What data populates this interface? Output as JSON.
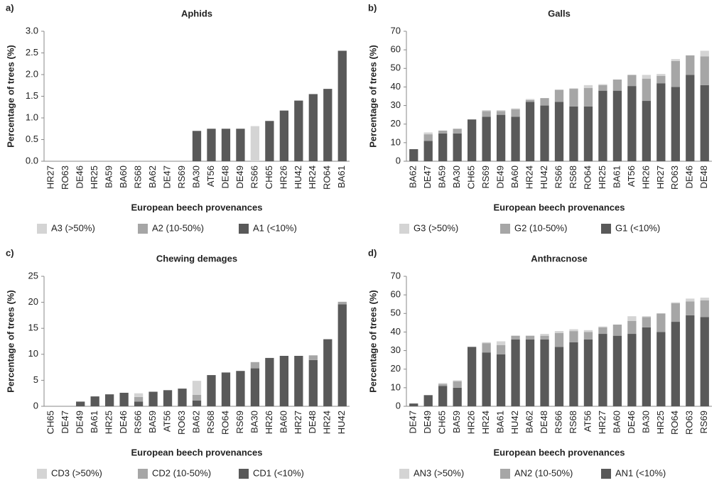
{
  "chart_data": [
    {
      "type": "bar",
      "stacked": true,
      "panel_label": "a)",
      "title": "Aphids",
      "x_label": "European beech provenances",
      "y_label": "Percentage of trees (%)",
      "categories": [
        "HR27",
        "RO63",
        "DE46",
        "HR25",
        "BA59",
        "BA60",
        "RS68",
        "BA62",
        "DE47",
        "RS69",
        "BA30",
        "AT56",
        "DE48",
        "DE49",
        "RS66",
        "CH65",
        "HR26",
        "HU42",
        "HR24",
        "RO64",
        "BA61"
      ],
      "series": [
        {
          "name": "A1 (<10%)",
          "color": "#595959",
          "values": [
            0,
            0,
            0,
            0,
            0,
            0,
            0,
            0,
            0,
            0,
            0.7,
            0.75,
            0.75,
            0.75,
            0,
            0.93,
            1.17,
            1.4,
            1.55,
            1.67,
            2.55
          ]
        },
        {
          "name": "A2 (10-50%)",
          "color": "#a6a6a6",
          "values": [
            0,
            0,
            0,
            0,
            0,
            0,
            0,
            0,
            0,
            0,
            0,
            0,
            0,
            0,
            0,
            0,
            0,
            0,
            0,
            0,
            0
          ]
        },
        {
          "name": "A3 (>50%)",
          "color": "#d4d4d4",
          "values": [
            0,
            0,
            0,
            0,
            0,
            0,
            0,
            0,
            0,
            0,
            0,
            0,
            0,
            0,
            0.81,
            0,
            0,
            0,
            0,
            0,
            0
          ]
        }
      ],
      "ylim": [
        0,
        3
      ],
      "yticks": [
        {
          "value": 0,
          "label": "0.0"
        },
        0.5,
        {
          "value": 1,
          "label": "1.0"
        },
        1.5,
        {
          "value": 2,
          "label": "2.0"
        },
        2.5,
        {
          "value": 3,
          "label": "3.0"
        }
      ],
      "grid": false
    },
    {
      "type": "bar",
      "stacked": true,
      "panel_label": "b)",
      "title": "Galls",
      "x_label": "European beech provenances",
      "y_label": "Percentage of trees (%)",
      "categories": [
        "BA62",
        "DE47",
        "BA59",
        "BA30",
        "CH65",
        "RS69",
        "DE49",
        "BA60",
        "HR24",
        "HU42",
        "RS66",
        "RS68",
        "RO64",
        "HR25",
        "BA61",
        "AT56",
        "HR26",
        "HR27",
        "RO63",
        "DE46",
        "DE48"
      ],
      "series": [
        {
          "name": "G1 (<10%)",
          "color": "#595959",
          "values": [
            6.5,
            11,
            15,
            15,
            22.5,
            24,
            25,
            24,
            32,
            30,
            32,
            29.5,
            29.5,
            38,
            38,
            40.5,
            32.5,
            42,
            40,
            46.5,
            41
          ]
        },
        {
          "name": "G2 (10-50%)",
          "color": "#a6a6a6",
          "values": [
            0,
            3.5,
            1.5,
            2.5,
            0,
            3,
            2,
            4,
            1,
            4,
            6.5,
            9.5,
            10,
            3,
            6,
            6,
            12,
            4,
            14,
            10.5,
            15.5
          ]
        },
        {
          "name": "G3 (>50%)",
          "color": "#d4d4d4",
          "values": [
            0,
            1,
            0,
            0,
            0,
            0.5,
            0.5,
            0.5,
            0.5,
            0,
            0,
            0.3,
            1.5,
            0.5,
            0,
            0,
            2,
            1,
            1,
            0,
            3
          ]
        }
      ],
      "ylim": [
        0,
        70
      ],
      "yticks": [
        0,
        10,
        20,
        30,
        40,
        50,
        60,
        70
      ],
      "grid": false
    },
    {
      "type": "bar",
      "stacked": true,
      "panel_label": "c)",
      "title": "Chewing demages",
      "x_label": "European beech provenances",
      "y_label": "Percentage of trees (%)",
      "categories": [
        "CH65",
        "DE47",
        "DE49",
        "BA61",
        "HR25",
        "DE46",
        "RS66",
        "BA59",
        "AT56",
        "RO63",
        "BA62",
        "RS68",
        "RO64",
        "RS69",
        "BA30",
        "HR26",
        "BA60",
        "HR27",
        "DE48",
        "HR24",
        "HU42"
      ],
      "series": [
        {
          "name": "CD1 (<10%)",
          "color": "#595959",
          "values": [
            0,
            0,
            0.9,
            1.9,
            2.3,
            2.6,
            0.9,
            2.8,
            3.1,
            3.4,
            1.1,
            6,
            6.5,
            6.8,
            7.3,
            9.3,
            9.7,
            9.7,
            8.9,
            12.9,
            19.6
          ]
        },
        {
          "name": "CD2 (10-50%)",
          "color": "#a6a6a6",
          "values": [
            0,
            0,
            0,
            0,
            0,
            0,
            0.9,
            0,
            0,
            0,
            1.1,
            0,
            0,
            0,
            1.2,
            0,
            0,
            0,
            0.9,
            0,
            0.5
          ]
        },
        {
          "name": "CD3 (>50%)",
          "color": "#d4d4d4",
          "values": [
            0,
            0,
            0,
            0,
            0,
            0,
            0.7,
            0,
            0,
            0,
            2.7,
            0,
            0,
            0,
            0,
            0,
            0,
            0,
            0,
            0,
            0
          ]
        }
      ],
      "ylim": [
        0,
        25
      ],
      "yticks": [
        0,
        5,
        10,
        15,
        20,
        25
      ],
      "grid": false
    },
    {
      "type": "bar",
      "stacked": true,
      "panel_label": "d)",
      "title": "Anthracnose",
      "x_label": "European beech provenances",
      "y_label": "Percentage of trees (%)",
      "categories": [
        "DE47",
        "DE49",
        "CH65",
        "BA59",
        "HR26",
        "HR24",
        "BA61",
        "HU42",
        "BA62",
        "DE48",
        "RS66",
        "RS68",
        "AT56",
        "HR27",
        "BA60",
        "DE46",
        "BA30",
        "HR25",
        "RO64",
        "RO63",
        "RS69"
      ],
      "series": [
        {
          "name": "AN1 (<10%)",
          "color": "#595959",
          "values": [
            1.5,
            6,
            11,
            10,
            32,
            29,
            28,
            36,
            36,
            36,
            32,
            34.5,
            36,
            39,
            38,
            39,
            42.5,
            40,
            45.5,
            49,
            48
          ]
        },
        {
          "name": "AN2 (10-50%)",
          "color": "#a6a6a6",
          "values": [
            0,
            0,
            1,
            3.5,
            0,
            5,
            5,
            2,
            2,
            2,
            7.5,
            6,
            4,
            3.5,
            6,
            7,
            5.5,
            10,
            10,
            7.5,
            9
          ]
        },
        {
          "name": "AN3 (>50%)",
          "color": "#d4d4d4",
          "values": [
            0,
            0,
            0.5,
            0.5,
            0,
            0.5,
            2,
            0,
            0,
            1,
            1,
            1,
            1,
            0.5,
            0,
            2.5,
            0.5,
            0,
            0.5,
            1.5,
            1.5
          ]
        }
      ],
      "ylim": [
        0,
        70
      ],
      "yticks": [
        0,
        10,
        20,
        30,
        40,
        50,
        60,
        70
      ],
      "grid": false
    }
  ]
}
